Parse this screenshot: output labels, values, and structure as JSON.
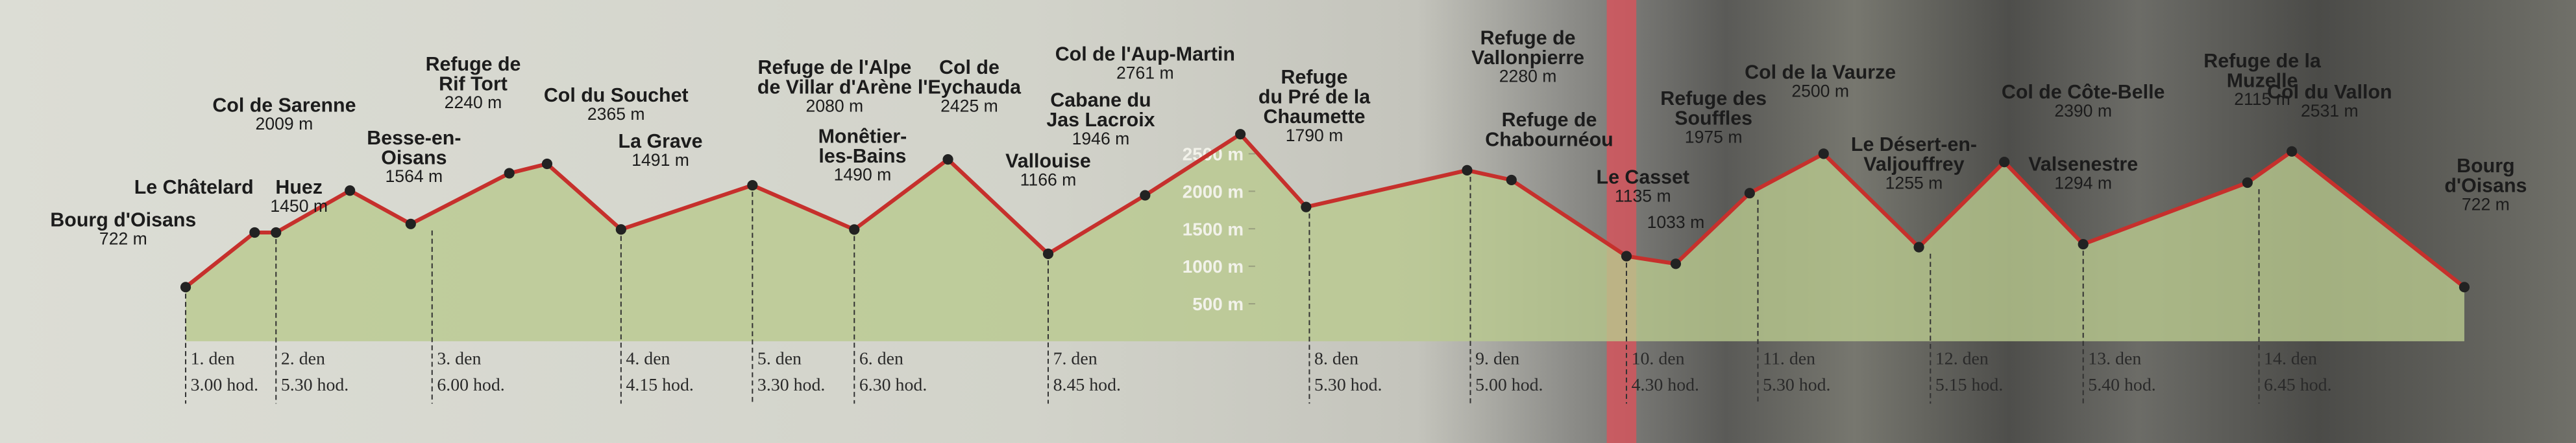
{
  "chart_data": {
    "type": "line",
    "categories": [
      "Bourg d'Oisans",
      "Le Châtelard",
      "Huez",
      "Col de Sarenne",
      "Besse-en-\nOisans",
      "Refuge de\nRif Tort",
      "Col du Souchet",
      "La Grave",
      "Refuge de l'Alpe\nde Villar d'Arène",
      "Monêtier-\nles-Bains",
      "Col de\nl'Eychauda",
      "Vallouise",
      "Cabane du\nJas Lacroix",
      "Col de l'Aup-Martin",
      "Refuge\ndu Pré de la\nChaumette",
      "Refuge de\nVallonpierre",
      "Refuge de\nChabournéou",
      "Le Casset",
      null,
      "Refuge des\nSouffles",
      "Col de la Vaurze",
      "Le Désert-en-\nValjouffrey",
      "Col de Côte-Belle",
      "Valsenestre",
      "Refuge de la\nMuzelle",
      "Col du Vallon",
      "Bourg\nd'Oisans"
    ],
    "values": [
      722,
      1450,
      1450,
      2009,
      1564,
      2240,
      2365,
      1491,
      2080,
      1490,
      2425,
      1166,
      1946,
      2761,
      1790,
      2280,
      2150,
      1135,
      1033,
      1975,
      2500,
      1255,
      2390,
      1294,
      2115,
      2531,
      722
    ],
    "value_labels": [
      "722 m",
      null,
      "1450 m",
      "2009 m",
      "1564 m",
      "2240 m",
      "2365 m",
      "1491 m",
      "2080 m",
      "1490 m",
      "2425 m",
      "1166 m",
      "1946 m",
      "2761 m",
      "1790 m",
      "2280 m",
      null,
      "1135 m",
      "1033 m",
      "1975 m",
      "2500 m",
      "1255 m",
      "2390 m",
      "1294 m",
      "2115 m",
      "2531 m",
      "722 m"
    ],
    "color": "#c6302c",
    "area_color": "#b9c98f",
    "ylim": [
      0,
      4550
    ],
    "yticks": [
      {
        "value": 500,
        "label": "500 m"
      },
      {
        "value": 1000,
        "label": "1000 m"
      },
      {
        "value": 1500,
        "label": "1500 m"
      },
      {
        "value": 2000,
        "label": "2000 m"
      },
      {
        "value": 2500,
        "label": "2500 m"
      }
    ],
    "stages": [
      {
        "day": "1. den",
        "time": "3.00 hod."
      },
      {
        "day": "2. den",
        "time": "5.30 hod."
      },
      {
        "day": "3. den",
        "time": "6.00 hod."
      },
      {
        "day": "4. den",
        "time": "4.15 hod."
      },
      {
        "day": "5. den",
        "time": "3.30 hod."
      },
      {
        "day": "6. den",
        "time": "6.30 hod."
      },
      {
        "day": "7. den",
        "time": "8.45 hod."
      },
      {
        "day": "8. den",
        "time": "5.30 hod."
      },
      {
        "day": "9. den",
        "time": "5.00 hod."
      },
      {
        "day": "10. den",
        "time": "4.30 hod."
      },
      {
        "day": "11. den",
        "time": "5.30 hod."
      },
      {
        "day": "12. den",
        "time": "5.15 hod."
      },
      {
        "day": "13. den",
        "time": "5.40 hod."
      },
      {
        "day": "14. den",
        "time": "6.45 hod."
      }
    ]
  }
}
